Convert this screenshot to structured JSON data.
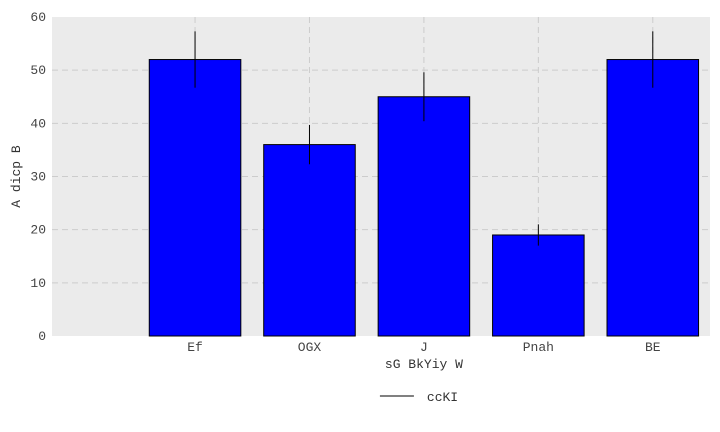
{
  "chart_data": {
    "type": "bar",
    "categories": [
      "Ef",
      "OGX",
      "J",
      "Pnah",
      "BE"
    ],
    "series": [
      {
        "name": "ccKI",
        "values": [
          52,
          36,
          45,
          19,
          52
        ],
        "errors": [
          5.3,
          3.7,
          4.6,
          2.0,
          5.3
        ],
        "color": "#0000ff"
      }
    ],
    "title": "",
    "xlabel": "sG  BkYiy  W",
    "ylabel": "A dicp B",
    "ylim": [
      0,
      60
    ],
    "yticks": [
      0,
      10,
      20,
      30,
      40,
      50,
      60
    ],
    "grid": true,
    "legend_position": "bottom-center",
    "background": "#ebebeb",
    "grid_color": "#cccccc",
    "error_color": "#000000"
  }
}
